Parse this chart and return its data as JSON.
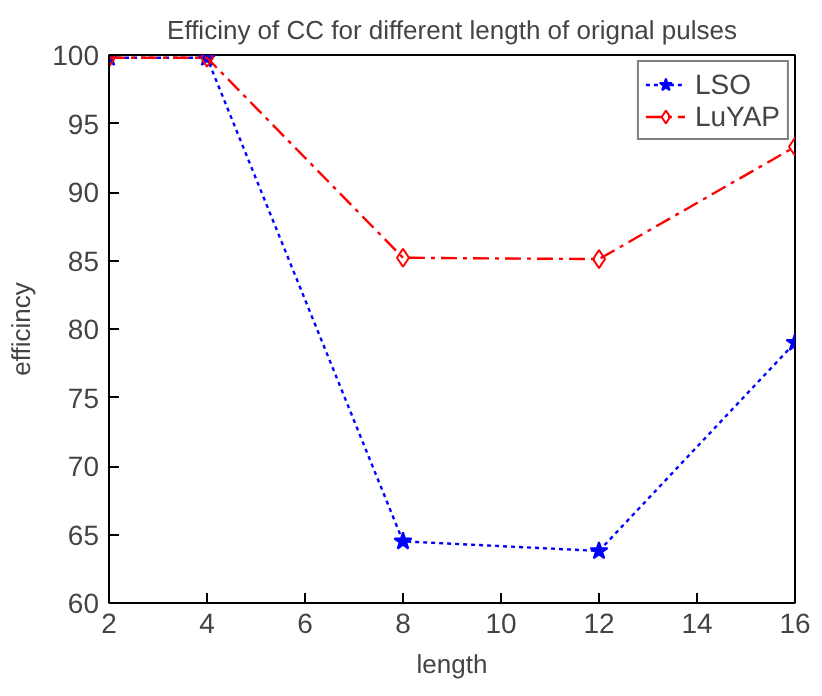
{
  "chart_data": {
    "type": "line",
    "title": "Efficiny of CC for different length of orignal pulses",
    "xlabel": "length",
    "ylabel": "efficincy",
    "x": [
      2,
      4,
      8,
      12,
      16
    ],
    "xlim": [
      2,
      16
    ],
    "xticks": [
      2,
      4,
      6,
      8,
      10,
      12,
      14,
      16
    ],
    "ylim": [
      60,
      100
    ],
    "yticks": [
      60,
      65,
      70,
      75,
      80,
      85,
      90,
      95,
      100
    ],
    "grid": false,
    "legend": "top right",
    "series": [
      {
        "name": "LSO",
        "color": "#0000ff",
        "values": [
          99.8,
          99.8,
          64.5,
          63.8,
          79.0
        ],
        "marker": "star",
        "line_style": "dotted"
      },
      {
        "name": "LuYAP",
        "color": "#ff0000",
        "values": [
          99.8,
          99.8,
          85.2,
          85.1,
          93.3
        ],
        "marker": "diamond",
        "line_style": "dashed"
      }
    ]
  }
}
